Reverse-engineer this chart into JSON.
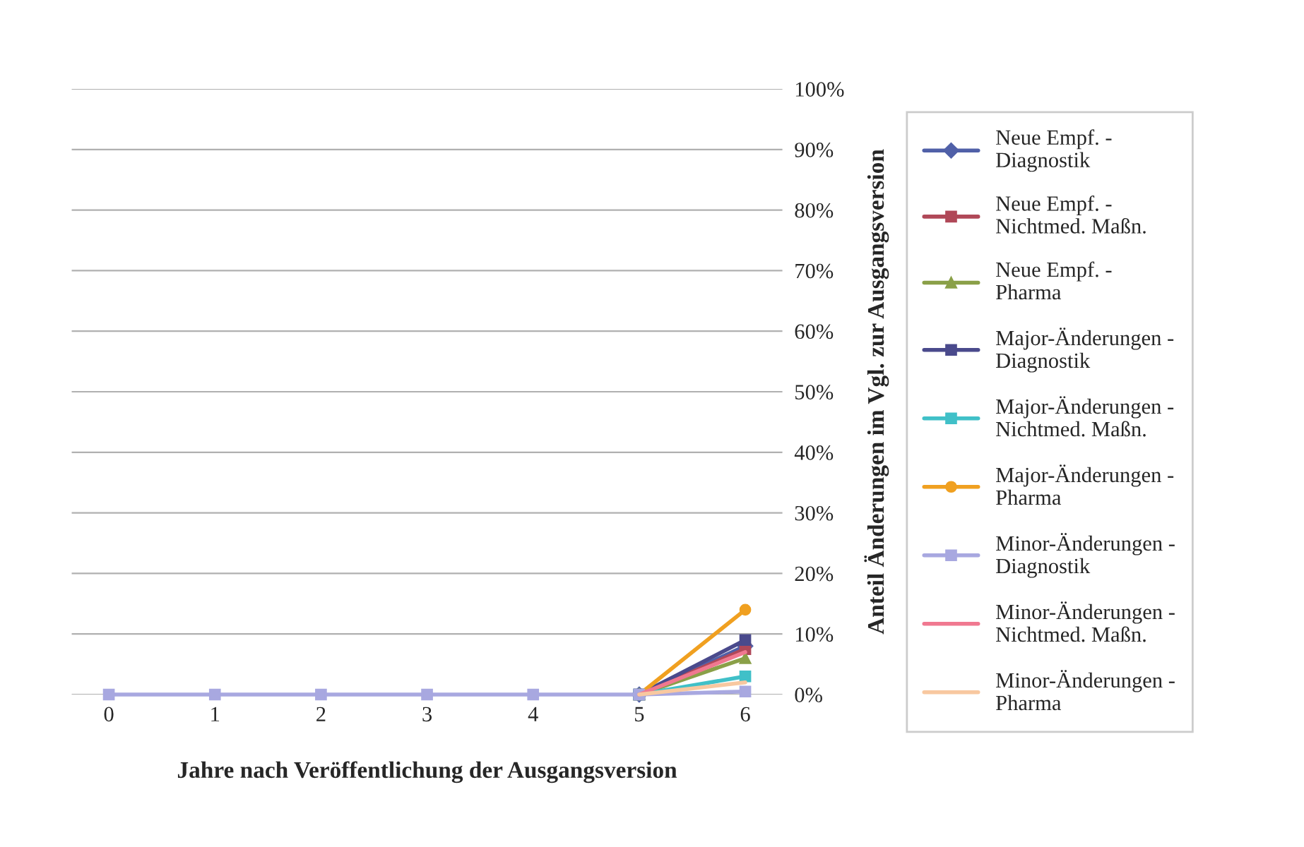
{
  "chart_data": {
    "type": "line",
    "xlabel": "Jahre nach Veröffentlichung der Ausgangsversion",
    "ylabel": "Anteil Änderungen im Vgl. zur Ausgangsversion",
    "categories": [
      "0",
      "1",
      "2",
      "3",
      "4",
      "5",
      "6"
    ],
    "ylim": [
      0,
      100
    ],
    "yticks": [
      {
        "value": 0,
        "label": "0%"
      },
      {
        "value": 10,
        "label": "10%"
      },
      {
        "value": 20,
        "label": "20%"
      },
      {
        "value": 30,
        "label": "30%"
      },
      {
        "value": 40,
        "label": "40%"
      },
      {
        "value": 50,
        "label": "50%"
      },
      {
        "value": 60,
        "label": "60%"
      },
      {
        "value": 70,
        "label": "70%"
      },
      {
        "value": 80,
        "label": "80%"
      },
      {
        "value": 90,
        "label": "90%"
      },
      {
        "value": 100,
        "label": "100%"
      }
    ],
    "grid": "y",
    "legend": "right",
    "series": [
      {
        "name": "Neue Empf. -\nDiagnostik",
        "color": "#5060a8",
        "marker": "diamond",
        "values": [
          null,
          null,
          null,
          null,
          null,
          0,
          8
        ]
      },
      {
        "name": "Neue Empf. -\nNichtmed. Maßn.",
        "color": "#b04858",
        "marker": "square",
        "values": [
          null,
          null,
          null,
          null,
          null,
          0,
          7.5
        ]
      },
      {
        "name": "Neue Empf. -\nPharma",
        "color": "#8aa048",
        "marker": "triangle",
        "values": [
          null,
          null,
          null,
          null,
          null,
          0,
          6
        ]
      },
      {
        "name": "Major-Änderungen -\nDiagnostik",
        "color": "#4a4a8c",
        "marker": "square",
        "values": [
          null,
          null,
          null,
          null,
          null,
          0,
          9
        ]
      },
      {
        "name": "Major-Änderungen -\nNichtmed. Maßn.",
        "color": "#40c0c8",
        "marker": "square",
        "values": [
          null,
          null,
          null,
          null,
          null,
          0,
          3
        ]
      },
      {
        "name": "Major-Änderungen -\nPharma",
        "color": "#f0a020",
        "marker": "circle",
        "values": [
          null,
          null,
          null,
          null,
          null,
          0,
          14
        ]
      },
      {
        "name": "Minor-Änderungen -\nDiagnostik",
        "color": "#a8a8e0",
        "marker": "square",
        "values": [
          0,
          0,
          0,
          0,
          0,
          0,
          0.5
        ]
      },
      {
        "name": "Minor-Änderungen -\nNichtmed. Maßn.",
        "color": "#f07890",
        "marker": "none",
        "values": [
          null,
          null,
          null,
          null,
          null,
          0,
          7
        ]
      },
      {
        "name": "Minor-Änderungen -\nPharma",
        "color": "#f8c8a0",
        "marker": "none",
        "values": [
          null,
          null,
          null,
          null,
          null,
          0,
          2
        ]
      }
    ]
  }
}
